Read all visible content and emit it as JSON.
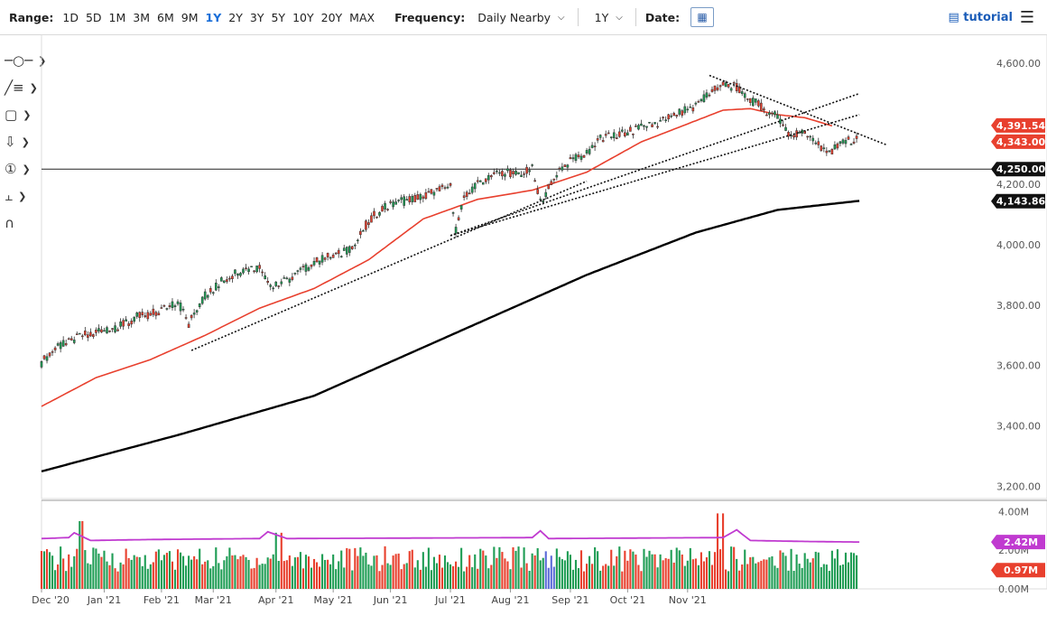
{
  "toolbar": {
    "range_label": "Range:",
    "ranges": [
      "1D",
      "5D",
      "1M",
      "3M",
      "6M",
      "9M",
      "1Y",
      "2Y",
      "3Y",
      "5Y",
      "10Y",
      "20Y",
      "MAX"
    ],
    "active_range": "1Y",
    "frequency_label": "Frequency:",
    "frequency_value": "Daily Nearby",
    "period_value": "1Y",
    "date_label": "Date:",
    "tutorial_label": "tutorial"
  },
  "sidebar_tools": [
    "crosshair-tool",
    "trendline-tool",
    "rectangle-tool",
    "arrow-tool",
    "counter-tool",
    "fibonacci-tool",
    "magnet-tool"
  ],
  "chart_data": [
    {
      "type": "candlestick",
      "title": "",
      "x_ticks": [
        "Dec '20",
        "Jan '21",
        "Feb '21",
        "Mar '21",
        "Apr '21",
        "May '21",
        "Jun '21",
        "Jul '21",
        "Aug '21",
        "Sep '21",
        "Oct '21",
        "Nov '21"
      ],
      "y_ticks": [
        "4,600.00",
        "4,400.00",
        "4,200.00",
        "4,000.00",
        "3,800.00",
        "3,600.00",
        "3,400.00",
        "3,200.00"
      ],
      "ylim": [
        3160,
        4660
      ],
      "grid": false,
      "series_points": [
        [
          0,
          3610
        ],
        [
          5,
          3660
        ],
        [
          10,
          3675
        ],
        [
          15,
          3700
        ],
        [
          20,
          3710
        ],
        [
          25,
          3720
        ],
        [
          30,
          3735
        ],
        [
          35,
          3760
        ],
        [
          40,
          3770
        ],
        [
          45,
          3790
        ],
        [
          50,
          3810
        ],
        [
          54,
          3740
        ],
        [
          60,
          3830
        ],
        [
          65,
          3870
        ],
        [
          70,
          3900
        ],
        [
          75,
          3920
        ],
        [
          80,
          3925
        ],
        [
          85,
          3860
        ],
        [
          90,
          3880
        ],
        [
          95,
          3910
        ],
        [
          100,
          3940
        ],
        [
          105,
          3960
        ],
        [
          110,
          3970
        ],
        [
          115,
          4000
        ],
        [
          120,
          4080
        ],
        [
          125,
          4120
        ],
        [
          130,
          4135
        ],
        [
          135,
          4150
        ],
        [
          140,
          4160
        ],
        [
          145,
          4180
        ],
        [
          150,
          4190
        ],
        [
          152,
          4050
        ],
        [
          155,
          4150
        ],
        [
          160,
          4200
        ],
        [
          165,
          4230
        ],
        [
          170,
          4240
        ],
        [
          175,
          4230
        ],
        [
          180,
          4250
        ],
        [
          183,
          4140
        ],
        [
          190,
          4250
        ],
        [
          195,
          4280
        ],
        [
          200,
          4300
        ],
        [
          205,
          4350
        ],
        [
          210,
          4360
        ],
        [
          215,
          4370
        ],
        [
          220,
          4390
        ],
        [
          225,
          4400
        ],
        [
          230,
          4420
        ],
        [
          235,
          4440
        ],
        [
          240,
          4460
        ],
        [
          245,
          4500
        ],
        [
          250,
          4530
        ],
        [
          255,
          4520
        ],
        [
          260,
          4480
        ],
        [
          265,
          4450
        ],
        [
          270,
          4420
        ],
        [
          275,
          4360
        ],
        [
          280,
          4380
        ],
        [
          285,
          4330
        ],
        [
          290,
          4310
        ],
        [
          295,
          4340
        ],
        [
          300,
          4350
        ]
      ],
      "ma50_points": [
        [
          0,
          3465
        ],
        [
          20,
          3560
        ],
        [
          40,
          3620
        ],
        [
          60,
          3700
        ],
        [
          80,
          3790
        ],
        [
          100,
          3855
        ],
        [
          120,
          3950
        ],
        [
          140,
          4085
        ],
        [
          160,
          4150
        ],
        [
          180,
          4180
        ],
        [
          200,
          4240
        ],
        [
          220,
          4340
        ],
        [
          240,
          4410
        ],
        [
          250,
          4445
        ],
        [
          260,
          4450
        ],
        [
          270,
          4430
        ],
        [
          280,
          4420
        ],
        [
          290,
          4393
        ]
      ],
      "ma200_points": [
        [
          0,
          3250
        ],
        [
          50,
          3370
        ],
        [
          100,
          3500
        ],
        [
          150,
          3700
        ],
        [
          200,
          3900
        ],
        [
          240,
          4040
        ],
        [
          270,
          4115
        ],
        [
          300,
          4145
        ]
      ],
      "trendlines": [
        {
          "from": [
            55,
            3650
          ],
          "to": [
            200,
            4210
          ]
        },
        {
          "from": [
            150,
            4030
          ],
          "to": [
            300,
            4500
          ]
        },
        {
          "from": [
            150,
            4030
          ],
          "to": [
            300,
            4430
          ]
        },
        {
          "from": [
            245,
            4560
          ],
          "to": [
            310,
            4330
          ]
        }
      ],
      "horizontal_level": 4250,
      "price_labels": [
        {
          "text": "4,391.54",
          "value": 4391.54,
          "color": "#e8402e"
        },
        {
          "text": "4,343.00",
          "value": 4343.0,
          "color": "#e8402e"
        },
        {
          "text": "4,250.00",
          "value": 4250.0,
          "color": "#111111"
        },
        {
          "text": "4,143.86",
          "value": 4143.86,
          "color": "#111111"
        }
      ]
    },
    {
      "type": "bar",
      "title": "",
      "y_ticks": [
        "4.00M",
        "2.00M",
        "0.00M"
      ],
      "ylim": [
        0,
        4.2
      ],
      "avg_points": [
        [
          0,
          2.6
        ],
        [
          10,
          2.65
        ],
        [
          12,
          2.9
        ],
        [
          15,
          2.7
        ],
        [
          18,
          2.5
        ],
        [
          40,
          2.55
        ],
        [
          80,
          2.6
        ],
        [
          83,
          2.95
        ],
        [
          90,
          2.6
        ],
        [
          180,
          2.65
        ],
        [
          183,
          3.0
        ],
        [
          186,
          2.6
        ],
        [
          250,
          2.65
        ],
        [
          255,
          3.05
        ],
        [
          260,
          2.5
        ],
        [
          280,
          2.45
        ],
        [
          300,
          2.42
        ]
      ],
      "price_labels": [
        {
          "text": "2.42M",
          "value": 2.42,
          "color": "#c03ad0"
        },
        {
          "text": "0.97M",
          "value": 0.97,
          "color": "#e8402e"
        }
      ]
    }
  ],
  "colors": {
    "up": "#1f9d55",
    "down": "#e8402e",
    "ma50": "#e8402e",
    "ma200": "#000000",
    "volume_avg": "#c03ad0",
    "accent": "#1a6ed8"
  }
}
